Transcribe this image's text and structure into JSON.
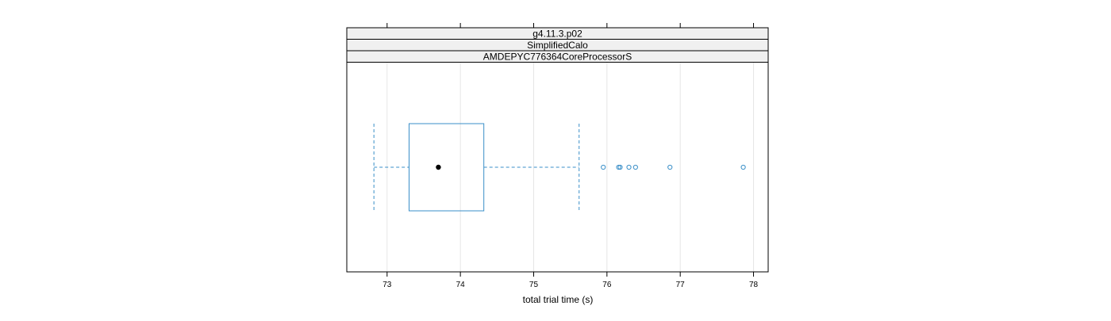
{
  "chart_data": {
    "type": "boxplot",
    "strips": [
      "g4.11.3.p02",
      "SimplifiedCalo",
      "AMDEPYC776364CoreProcessorS"
    ],
    "xlabel": "total trial time (s)",
    "xlim": [
      72.45,
      78.2
    ],
    "x_ticks": [
      73,
      74,
      75,
      76,
      77,
      78
    ],
    "x_tick_labels": [
      "73",
      "74",
      "75",
      "76",
      "77",
      "78"
    ],
    "grid": true,
    "box": {
      "whisker_low": 72.82,
      "q1": 73.3,
      "median": 73.7,
      "q3": 74.32,
      "whisker_high": 75.62
    },
    "outliers": [
      75.95,
      76.16,
      76.18,
      76.3,
      76.39,
      76.86,
      77.86
    ],
    "colors": {
      "box": "#3a8fc8",
      "median_dot": "#000000",
      "strip_bg": "#f0f0f0",
      "panel_border": "#000000",
      "grid": "#e6e6e6"
    }
  }
}
